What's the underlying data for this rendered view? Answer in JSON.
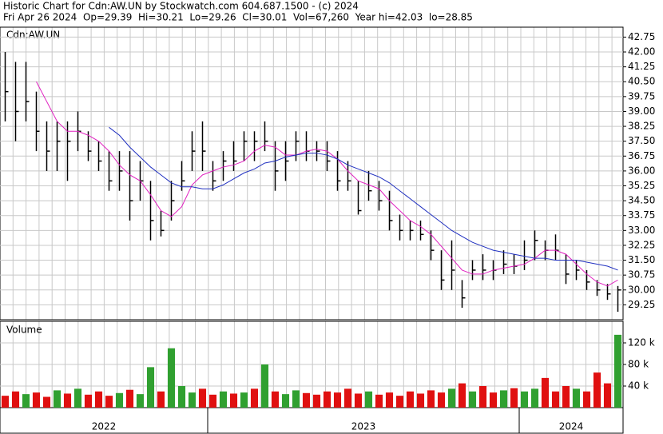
{
  "header": {
    "title": "Historic Chart for Cdn:AW.UN by Stockwatch.com 604.687.1500 - (c) 2024",
    "subtitle": "Fri Apr 26 2024  Op=29.39  Hi=30.21  Lo=29.26  Cl=30.01  Vol=67,260  Year hi=42.03  lo=28.85"
  },
  "chart_data": [
    {
      "type": "ohlc",
      "label": "Cdn:AW.UN",
      "categories": [
        "2022",
        null,
        null,
        null,
        null,
        null,
        null,
        null,
        null,
        null,
        null,
        null,
        null,
        null,
        null,
        null,
        null,
        null,
        null,
        null,
        "2023",
        null,
        null,
        null,
        null,
        null,
        null,
        null,
        null,
        null,
        null,
        null,
        null,
        null,
        null,
        null,
        null,
        null,
        null,
        null,
        null,
        null,
        null,
        null,
        null,
        null,
        null,
        null,
        null,
        null,
        "2024",
        null,
        null,
        null,
        null,
        null,
        null,
        null,
        null,
        null
      ],
      "high": [
        42,
        41.5,
        41.5,
        40,
        38.5,
        38.5,
        38.5,
        39,
        38,
        37.5,
        37,
        37,
        37,
        36.5,
        35.5,
        34,
        35.5,
        36.5,
        38,
        38.5,
        36.5,
        37,
        37.5,
        38,
        38,
        38.5,
        37.5,
        37.5,
        38,
        38,
        37.5,
        37.5,
        37,
        36.5,
        35.5,
        36,
        35.5,
        35,
        33.8,
        33.5,
        33.5,
        33,
        32,
        32.5,
        30.5,
        31.5,
        31.8,
        31.5,
        32,
        31.8,
        32.5,
        33,
        32.5,
        32.8,
        31.8,
        31.5,
        31,
        30.5,
        30.3,
        30.2
      ],
      "low": [
        38.5,
        37.5,
        38.5,
        37,
        36,
        36,
        35.5,
        37,
        36.5,
        36,
        35,
        35,
        33.5,
        34.5,
        32.5,
        32.7,
        33.5,
        35,
        36,
        36,
        35,
        35.5,
        36,
        36.5,
        36.5,
        37,
        35,
        35.5,
        36.5,
        36.5,
        36.5,
        36,
        35,
        35,
        33.8,
        34.5,
        34,
        33,
        32.5,
        32.5,
        32.5,
        31.5,
        30,
        30,
        29.1,
        30.5,
        30.5,
        30.5,
        30.8,
        30.8,
        31,
        31.5,
        31.5,
        31.5,
        30.3,
        30.5,
        30,
        29.7,
        29.5,
        28.9
      ],
      "close": [
        40,
        39,
        39.5,
        38,
        37,
        37.5,
        37.5,
        38,
        37,
        36.5,
        35.5,
        36,
        34.5,
        35.5,
        33.5,
        33,
        34.5,
        35.5,
        37,
        37,
        35.5,
        36.5,
        36.5,
        37.5,
        37.5,
        37.5,
        36,
        36.5,
        37.5,
        37,
        37,
        36.5,
        35.5,
        35.5,
        34,
        35,
        34.5,
        33.5,
        33,
        33,
        32.8,
        32,
        30.5,
        31,
        29.6,
        31,
        31,
        31,
        31.3,
        31.2,
        31.5,
        32.5,
        32,
        32,
        30.8,
        31,
        30.4,
        30,
        29.8,
        30
      ],
      "lines": [
        {
          "color": "#e020c0",
          "values": [
            null,
            null,
            null,
            40.5,
            39.5,
            38.5,
            38,
            38,
            37.8,
            37.5,
            37,
            36.3,
            35.8,
            35.5,
            34.8,
            34,
            33.7,
            34.2,
            35.3,
            35.8,
            36,
            36.2,
            36.3,
            36.5,
            37,
            37.3,
            37.2,
            36.8,
            36.8,
            37,
            37.1,
            37,
            36.6,
            36,
            35.5,
            35.3,
            35.1,
            34.5,
            34,
            33.5,
            33.2,
            32.8,
            32.2,
            31.6,
            31,
            30.8,
            30.8,
            31,
            31.1,
            31.2,
            31.3,
            31.6,
            32,
            32,
            31.8,
            31.3,
            30.8,
            30.4,
            30.2,
            30.5
          ]
        },
        {
          "color": "#2030c0",
          "values": [
            null,
            null,
            null,
            null,
            null,
            null,
            null,
            null,
            null,
            null,
            38.2,
            37.8,
            37.2,
            36.7,
            36.2,
            35.8,
            35.4,
            35.2,
            35.2,
            35.1,
            35.1,
            35.3,
            35.6,
            35.9,
            36.1,
            36.4,
            36.5,
            36.7,
            36.8,
            36.9,
            36.9,
            36.8,
            36.6,
            36.3,
            36.1,
            35.9,
            35.7,
            35.4,
            35,
            34.6,
            34.2,
            33.8,
            33.4,
            33,
            32.7,
            32.4,
            32.2,
            32,
            31.9,
            31.8,
            31.7,
            31.6,
            31.6,
            31.5,
            31.5,
            31.5,
            31.4,
            31.3,
            31.2,
            31
          ]
        }
      ],
      "ylim": [
        28.5,
        43.25
      ],
      "yticks": [
        42.75,
        {
          "value": 42,
          "label": "42.00"
        },
        41.25,
        {
          "value": 40.5,
          "label": "40.50"
        },
        39.75,
        {
          "value": 39,
          "label": "39.00"
        },
        38.25,
        {
          "value": 37.5,
          "label": "37.50"
        },
        36.75,
        {
          "value": 36,
          "label": "36.00"
        },
        35.25,
        {
          "value": 34.5,
          "label": "34.50"
        },
        33.75,
        {
          "value": 33,
          "label": "33.00"
        },
        32.25,
        {
          "value": 31.5,
          "label": "31.50"
        },
        30.75,
        {
          "value": 30,
          "label": "30.00"
        },
        29.25
      ],
      "color": "#000000",
      "grid": true
    },
    {
      "type": "bar",
      "label": "Volume",
      "values": [
        22000,
        30000,
        25000,
        28000,
        20000,
        32000,
        26000,
        35000,
        24000,
        30000,
        22000,
        27000,
        33000,
        25000,
        75000,
        30000,
        110000,
        40000,
        28000,
        35000,
        24000,
        30000,
        26000,
        28000,
        35000,
        80000,
        30000,
        25000,
        32000,
        27000,
        24000,
        30000,
        28000,
        35000,
        26000,
        30000,
        24000,
        28000,
        22000,
        30000,
        26000,
        32000,
        28000,
        35000,
        45000,
        30000,
        40000,
        28000,
        32000,
        36000,
        30000,
        35000,
        55000,
        30000,
        40000,
        35000,
        30000,
        65000,
        45000,
        135000
      ],
      "colors": [
        "#e01010",
        "#e01010",
        "#30a030",
        "#e01010",
        "#e01010",
        "#30a030",
        "#e01010",
        "#30a030",
        "#e01010",
        "#e01010",
        "#e01010",
        "#30a030",
        "#e01010",
        "#30a030",
        "#30a030",
        "#e01010",
        "#30a030",
        "#30a030",
        "#30a030",
        "#e01010",
        "#e01010",
        "#30a030",
        "#e01010",
        "#30a030",
        "#e01010",
        "#30a030",
        "#e01010",
        "#30a030",
        "#30a030",
        "#e01010",
        "#e01010",
        "#e01010",
        "#e01010",
        "#e01010",
        "#e01010",
        "#30a030",
        "#e01010",
        "#e01010",
        "#e01010",
        "#e01010",
        "#e01010",
        "#e01010",
        "#e01010",
        "#30a030",
        "#e01010",
        "#30a030",
        "#e01010",
        "#e01010",
        "#30a030",
        "#e01010",
        "#30a030",
        "#30a030",
        "#e01010",
        "#e01010",
        "#e01010",
        "#30a030",
        "#e01010",
        "#e01010",
        "#e01010",
        "#30a030"
      ],
      "ylim": [
        0,
        160000
      ],
      "yticks": [
        {
          "value": 40000,
          "label": "40 k"
        },
        {
          "value": 80000,
          "label": "80 k"
        },
        {
          "value": 120000,
          "label": "120 k"
        }
      ],
      "grid": true
    }
  ]
}
